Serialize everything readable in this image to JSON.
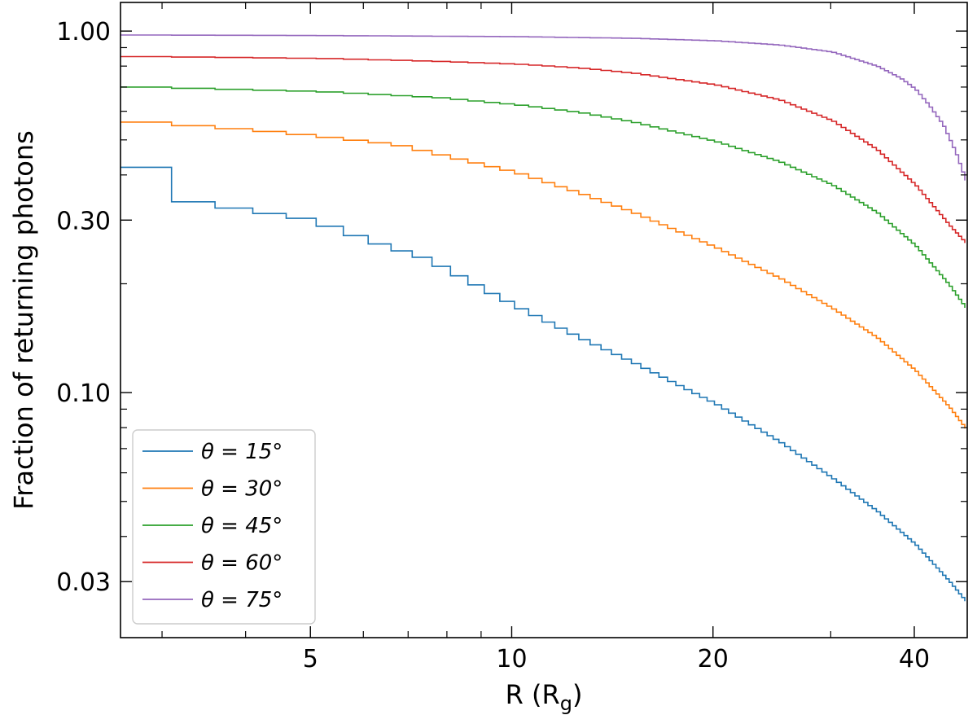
{
  "chart_data": {
    "type": "line",
    "step": true,
    "xscale": "log",
    "yscale": "log",
    "xlabel": "R (R",
    "xlabel_sub": "g",
    "xlabel_close": ")",
    "ylabel": "Fraction of returning photons",
    "xlim": [
      2.6,
      48
    ],
    "ylim": [
      0.021,
      1.2
    ],
    "xticks": [
      {
        "value": 5,
        "label": "5"
      },
      {
        "value": 10,
        "label": "10"
      },
      {
        "value": 20,
        "label": "20"
      },
      {
        "value": 40,
        "label": "40"
      }
    ],
    "yticks": [
      {
        "value": 0.03,
        "label": "0.03"
      },
      {
        "value": 0.1,
        "label": "0.10"
      },
      {
        "value": 0.3,
        "label": "0.30"
      },
      {
        "value": 1.0,
        "label": "1.00"
      }
    ],
    "grid": false,
    "tick_direction": "in",
    "legend_position": "bottom-left",
    "series": [
      {
        "name": "θ = 15°",
        "color": "#1f77b4",
        "x": [
          2.6,
          3.0,
          4.8,
          6.0,
          7.2,
          8.2,
          9.0,
          10.0,
          11.0,
          12.5,
          15.0,
          20.0,
          25.0,
          30.0,
          35.0,
          40.0,
          45.0,
          48.0
        ],
        "y": [
          0.42,
          0.34,
          0.3,
          0.26,
          0.235,
          0.208,
          0.19,
          0.172,
          0.158,
          0.141,
          0.121,
          0.093,
          0.073,
          0.058,
          0.047,
          0.038,
          0.03,
          0.026
        ]
      },
      {
        "name": "θ = 30°",
        "color": "#ff7f0e",
        "x": [
          2.6,
          4.0,
          5.0,
          6.5,
          8.0,
          10.0,
          12.5,
          15.0,
          20.0,
          25.0,
          30.0,
          35.0,
          40.0,
          45.0,
          48.0
        ],
        "y": [
          0.56,
          0.53,
          0.51,
          0.485,
          0.445,
          0.405,
          0.355,
          0.315,
          0.252,
          0.207,
          0.171,
          0.142,
          0.115,
          0.091,
          0.078
        ]
      },
      {
        "name": "θ = 45°",
        "color": "#2ca02c",
        "x": [
          2.6,
          5.0,
          7.5,
          10.0,
          12.5,
          15.0,
          20.0,
          25.0,
          30.0,
          35.0,
          40.0,
          45.0,
          48.0
        ],
        "y": [
          0.7,
          0.68,
          0.655,
          0.625,
          0.595,
          0.56,
          0.495,
          0.435,
          0.375,
          0.315,
          0.255,
          0.198,
          0.168
        ]
      },
      {
        "name": "θ = 60°",
        "color": "#d62728",
        "x": [
          2.6,
          5.0,
          7.5,
          10.0,
          12.5,
          15.0,
          20.0,
          25.0,
          30.0,
          35.0,
          40.0,
          45.0,
          48.0
        ],
        "y": [
          0.85,
          0.84,
          0.825,
          0.81,
          0.79,
          0.765,
          0.71,
          0.645,
          0.565,
          0.47,
          0.375,
          0.29,
          0.255
        ]
      },
      {
        "name": "θ = 75°",
        "color": "#9467bd",
        "x": [
          2.6,
          5.0,
          10.0,
          15.0,
          20.0,
          25.0,
          30.0,
          35.0,
          38.0,
          40.0,
          42.0,
          44.0,
          46.0,
          48.0
        ],
        "y": [
          0.975,
          0.972,
          0.965,
          0.955,
          0.94,
          0.915,
          0.875,
          0.8,
          0.74,
          0.69,
          0.62,
          0.55,
          0.46,
          0.37
        ]
      }
    ]
  }
}
